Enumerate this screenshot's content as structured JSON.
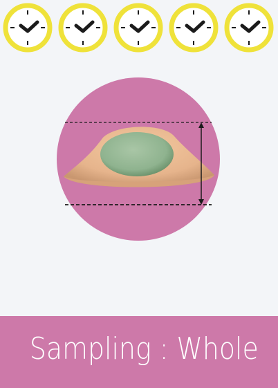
{
  "clocks": {
    "count": 5,
    "icon": "clock-icon",
    "ring_color": "#efe23a",
    "face_color": "#ffffff",
    "hand_color": "#1b1b1b"
  },
  "illustration": {
    "background_color": "#cd79a9",
    "cell_body_color": "#e6b48c",
    "nucleus_color": "#8fb38f",
    "dimension_line": "dashed",
    "subject": "cell-cross-section-icon"
  },
  "footer": {
    "label": "Sampling : Whole",
    "background_color": "#cd79a9",
    "text_color": "#ffffff"
  }
}
